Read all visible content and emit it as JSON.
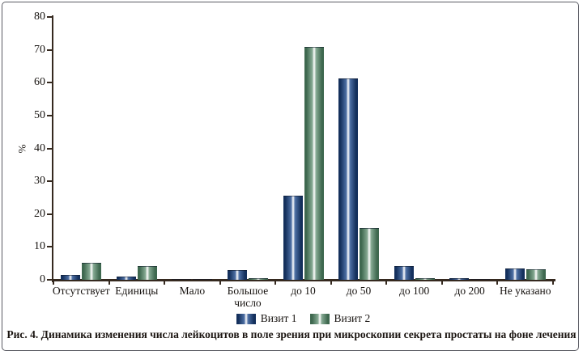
{
  "caption": "Рис. 4. Динамика изменения числа лейкоцитов в поле зрения при микроскопии секрета простаты на фоне лечения",
  "frame": {
    "border_color": "#5a5b63",
    "background": "#ffffff"
  },
  "chart_data": {
    "type": "bar",
    "title": "",
    "xlabel": "",
    "ylabel": "%",
    "ylim": [
      0,
      80
    ],
    "ytick_step": 10,
    "grid": false,
    "legend_position": "bottom",
    "axis_color": "#35291f",
    "categories": [
      "Отсутствует",
      "Единицы",
      "Мало",
      "Большое число",
      "до 10",
      "до 50",
      "до 100",
      "до 200",
      "Не указано"
    ],
    "series": [
      {
        "name": "Визит 1",
        "color_dark": "#14305c",
        "color_mid": "#4d6fa4",
        "values": [
          1.5,
          1.0,
          0.3,
          3.0,
          25.5,
          61.3,
          4.2,
          0.6,
          3.4
        ]
      },
      {
        "name": "Визит 2",
        "color_dark": "#3e684f",
        "color_mid": "#85a992",
        "values": [
          5.2,
          4.3,
          0.2,
          0.5,
          70.8,
          15.8,
          0.5,
          0.2,
          3.1
        ]
      }
    ]
  }
}
